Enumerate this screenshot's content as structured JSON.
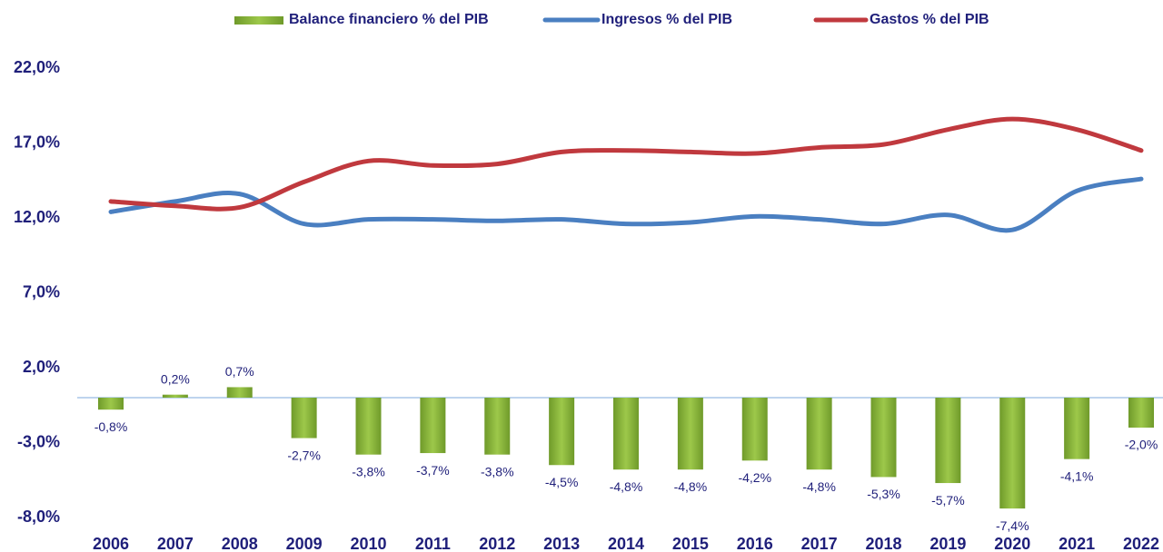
{
  "chart_data": {
    "type": "bar_line",
    "categories": [
      "2006",
      "2007",
      "2008",
      "2009",
      "2010",
      "2011",
      "2012",
      "2013",
      "2014",
      "2015",
      "2016",
      "2017",
      "2018",
      "2019",
      "2020",
      "2021",
      "2022"
    ],
    "series": [
      {
        "name": "Balance financiero % del PIB",
        "type": "bar",
        "color": "#8cb83a",
        "values": [
          -0.8,
          0.2,
          0.7,
          -2.7,
          -3.8,
          -3.7,
          -3.8,
          -4.5,
          -4.8,
          -4.8,
          -4.2,
          -4.8,
          -5.3,
          -5.7,
          -7.4,
          -4.1,
          -2.0
        ],
        "value_labels": [
          "-0,8%",
          "0,2%",
          "0,7%",
          "-2,7%",
          "-3,8%",
          "-3,7%",
          "-3,8%",
          "-4,5%",
          "-4,8%",
          "-4,8%",
          "-4,2%",
          "-4,8%",
          "-5,3%",
          "-5,7%",
          "-7,4%",
          "-4,1%",
          "-2,0%"
        ]
      },
      {
        "name": "Ingresos % del PIB",
        "type": "line",
        "color": "#4a7fc1",
        "values": [
          12.4,
          13.1,
          13.6,
          11.6,
          11.9,
          11.9,
          11.8,
          11.9,
          11.6,
          11.7,
          12.1,
          11.9,
          11.6,
          12.2,
          11.2,
          13.8,
          14.6
        ]
      },
      {
        "name": "Gastos % del PIB",
        "type": "line",
        "color": "#c0393e",
        "values": [
          13.1,
          12.8,
          12.7,
          14.4,
          15.8,
          15.5,
          15.6,
          16.4,
          16.5,
          16.4,
          16.3,
          16.7,
          16.9,
          17.9,
          18.6,
          17.9,
          16.5
        ]
      }
    ],
    "ylim": [
      -8,
      22
    ],
    "yticks": [
      {
        "value": -8,
        "label": "-8,0%"
      },
      {
        "value": -3,
        "label": "-3,0%"
      },
      {
        "value": 2,
        "label": "2,0%"
      },
      {
        "value": 7,
        "label": "7,0%"
      },
      {
        "value": 12,
        "label": "12,0%"
      },
      {
        "value": 17,
        "label": "17,0%"
      },
      {
        "value": 22,
        "label": "22,0%"
      }
    ],
    "legend": "top"
  }
}
